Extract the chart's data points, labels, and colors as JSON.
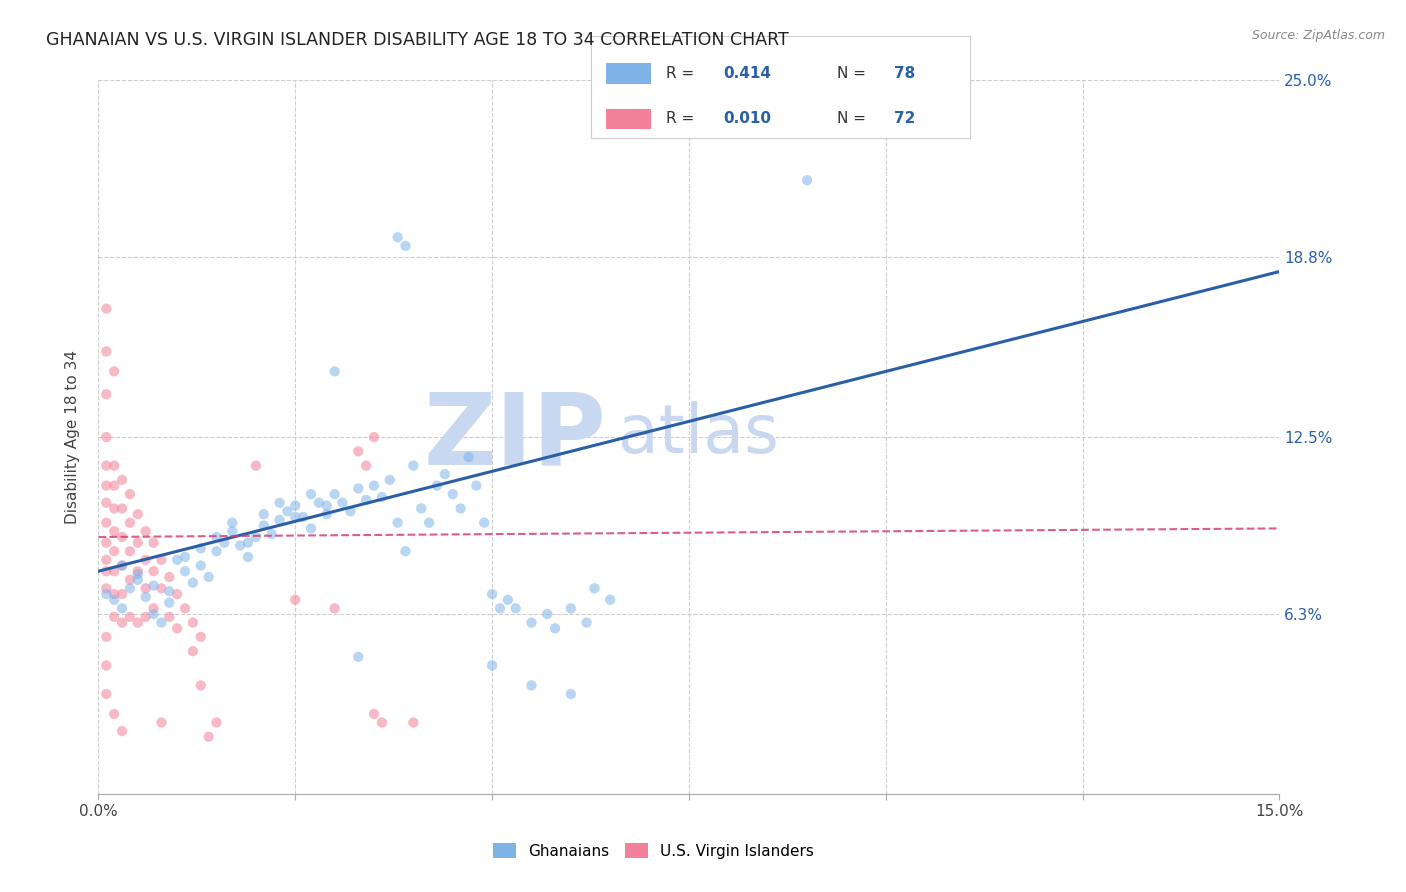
{
  "title": "GHANAIAN VS U.S. VIRGIN ISLANDER DISABILITY AGE 18 TO 34 CORRELATION CHART",
  "source": "Source: ZipAtlas.com",
  "xlabel_ticks": [
    "0.0%",
    "15.0%"
  ],
  "ylabel_ticks": [
    "6.3%",
    "12.5%",
    "18.8%",
    "25.0%"
  ],
  "ylabel_label": "Disability Age 18 to 34",
  "xlim": [
    0.0,
    0.15
  ],
  "ylim": [
    0.0,
    0.25
  ],
  "ytick_positions": [
    0.063,
    0.125,
    0.188,
    0.25
  ],
  "xtick_positions": [
    0.0,
    0.025,
    0.05,
    0.075,
    0.1,
    0.125,
    0.15
  ],
  "xtick_labels": [
    "0.0%",
    "",
    "",
    "",
    "",
    "",
    "15.0%"
  ],
  "blue_line_x": [
    0.0,
    0.15
  ],
  "blue_line_y": [
    0.078,
    0.183
  ],
  "pink_line_x": [
    0.0,
    0.15
  ],
  "pink_line_y": [
    0.09,
    0.093
  ],
  "blue_scatter": [
    [
      0.001,
      0.07
    ],
    [
      0.002,
      0.068
    ],
    [
      0.003,
      0.065
    ],
    [
      0.004,
      0.072
    ],
    [
      0.005,
      0.075
    ],
    [
      0.006,
      0.069
    ],
    [
      0.007,
      0.063
    ],
    [
      0.008,
      0.06
    ],
    [
      0.009,
      0.071
    ],
    [
      0.01,
      0.082
    ],
    [
      0.011,
      0.078
    ],
    [
      0.012,
      0.074
    ],
    [
      0.013,
      0.08
    ],
    [
      0.014,
      0.076
    ],
    [
      0.015,
      0.085
    ],
    [
      0.016,
      0.088
    ],
    [
      0.017,
      0.092
    ],
    [
      0.018,
      0.087
    ],
    [
      0.019,
      0.083
    ],
    [
      0.02,
      0.09
    ],
    [
      0.021,
      0.094
    ],
    [
      0.022,
      0.091
    ],
    [
      0.023,
      0.096
    ],
    [
      0.024,
      0.099
    ],
    [
      0.025,
      0.101
    ],
    [
      0.026,
      0.097
    ],
    [
      0.027,
      0.093
    ],
    [
      0.028,
      0.102
    ],
    [
      0.029,
      0.098
    ],
    [
      0.03,
      0.105
    ],
    [
      0.031,
      0.102
    ],
    [
      0.032,
      0.099
    ],
    [
      0.033,
      0.107
    ],
    [
      0.034,
      0.103
    ],
    [
      0.035,
      0.108
    ],
    [
      0.036,
      0.104
    ],
    [
      0.037,
      0.11
    ],
    [
      0.038,
      0.095
    ],
    [
      0.039,
      0.085
    ],
    [
      0.04,
      0.115
    ],
    [
      0.041,
      0.1
    ],
    [
      0.042,
      0.095
    ],
    [
      0.043,
      0.108
    ],
    [
      0.044,
      0.112
    ],
    [
      0.045,
      0.105
    ],
    [
      0.046,
      0.1
    ],
    [
      0.047,
      0.118
    ],
    [
      0.048,
      0.108
    ],
    [
      0.049,
      0.095
    ],
    [
      0.05,
      0.07
    ],
    [
      0.051,
      0.065
    ],
    [
      0.052,
      0.068
    ],
    [
      0.053,
      0.065
    ],
    [
      0.055,
      0.06
    ],
    [
      0.057,
      0.063
    ],
    [
      0.058,
      0.058
    ],
    [
      0.06,
      0.065
    ],
    [
      0.062,
      0.06
    ],
    [
      0.063,
      0.072
    ],
    [
      0.065,
      0.068
    ],
    [
      0.003,
      0.08
    ],
    [
      0.005,
      0.077
    ],
    [
      0.007,
      0.073
    ],
    [
      0.009,
      0.067
    ],
    [
      0.011,
      0.083
    ],
    [
      0.013,
      0.086
    ],
    [
      0.015,
      0.09
    ],
    [
      0.017,
      0.095
    ],
    [
      0.019,
      0.088
    ],
    [
      0.021,
      0.098
    ],
    [
      0.023,
      0.102
    ],
    [
      0.025,
      0.097
    ],
    [
      0.027,
      0.105
    ],
    [
      0.029,
      0.101
    ],
    [
      0.038,
      0.195
    ],
    [
      0.039,
      0.192
    ],
    [
      0.03,
      0.148
    ],
    [
      0.09,
      0.215
    ],
    [
      0.05,
      0.045
    ],
    [
      0.055,
      0.038
    ],
    [
      0.06,
      0.035
    ],
    [
      0.033,
      0.048
    ]
  ],
  "pink_scatter": [
    [
      0.001,
      0.17
    ],
    [
      0.001,
      0.155
    ],
    [
      0.001,
      0.14
    ],
    [
      0.001,
      0.125
    ],
    [
      0.001,
      0.115
    ],
    [
      0.001,
      0.108
    ],
    [
      0.001,
      0.102
    ],
    [
      0.001,
      0.095
    ],
    [
      0.001,
      0.088
    ],
    [
      0.001,
      0.082
    ],
    [
      0.001,
      0.078
    ],
    [
      0.001,
      0.072
    ],
    [
      0.002,
      0.115
    ],
    [
      0.002,
      0.108
    ],
    [
      0.002,
      0.1
    ],
    [
      0.002,
      0.092
    ],
    [
      0.002,
      0.085
    ],
    [
      0.002,
      0.078
    ],
    [
      0.002,
      0.07
    ],
    [
      0.002,
      0.062
    ],
    [
      0.003,
      0.11
    ],
    [
      0.003,
      0.1
    ],
    [
      0.003,
      0.09
    ],
    [
      0.003,
      0.08
    ],
    [
      0.003,
      0.07
    ],
    [
      0.004,
      0.105
    ],
    [
      0.004,
      0.095
    ],
    [
      0.004,
      0.085
    ],
    [
      0.004,
      0.075
    ],
    [
      0.005,
      0.098
    ],
    [
      0.005,
      0.088
    ],
    [
      0.005,
      0.078
    ],
    [
      0.006,
      0.092
    ],
    [
      0.006,
      0.082
    ],
    [
      0.006,
      0.072
    ],
    [
      0.007,
      0.088
    ],
    [
      0.007,
      0.078
    ],
    [
      0.008,
      0.082
    ],
    [
      0.008,
      0.072
    ],
    [
      0.009,
      0.076
    ],
    [
      0.01,
      0.07
    ],
    [
      0.011,
      0.065
    ],
    [
      0.012,
      0.06
    ],
    [
      0.013,
      0.055
    ],
    [
      0.001,
      0.055
    ],
    [
      0.001,
      0.045
    ],
    [
      0.001,
      0.035
    ],
    [
      0.002,
      0.148
    ],
    [
      0.002,
      0.028
    ],
    [
      0.003,
      0.022
    ],
    [
      0.033,
      0.12
    ],
    [
      0.034,
      0.115
    ],
    [
      0.035,
      0.125
    ],
    [
      0.013,
      0.038
    ],
    [
      0.036,
      0.025
    ],
    [
      0.035,
      0.028
    ],
    [
      0.02,
      0.115
    ],
    [
      0.025,
      0.068
    ],
    [
      0.03,
      0.065
    ],
    [
      0.04,
      0.025
    ],
    [
      0.015,
      0.025
    ],
    [
      0.014,
      0.02
    ],
    [
      0.008,
      0.025
    ],
    [
      0.01,
      0.058
    ],
    [
      0.012,
      0.05
    ],
    [
      0.009,
      0.062
    ],
    [
      0.007,
      0.065
    ],
    [
      0.006,
      0.062
    ],
    [
      0.005,
      0.06
    ],
    [
      0.004,
      0.062
    ],
    [
      0.003,
      0.06
    ]
  ],
  "title_color": "#222222",
  "title_fontsize": 12.5,
  "scatter_size": 55,
  "blue_color": "#7fb3e8",
  "pink_color": "#f4819a",
  "blue_line_color": "#2a5fa8",
  "pink_line_color": "#d44070",
  "grid_color": "#c8c8c8",
  "background_color": "#ffffff",
  "watermark_zip": "ZIP",
  "watermark_atlas": "atlas",
  "watermark_color": "#c8d8f0"
}
